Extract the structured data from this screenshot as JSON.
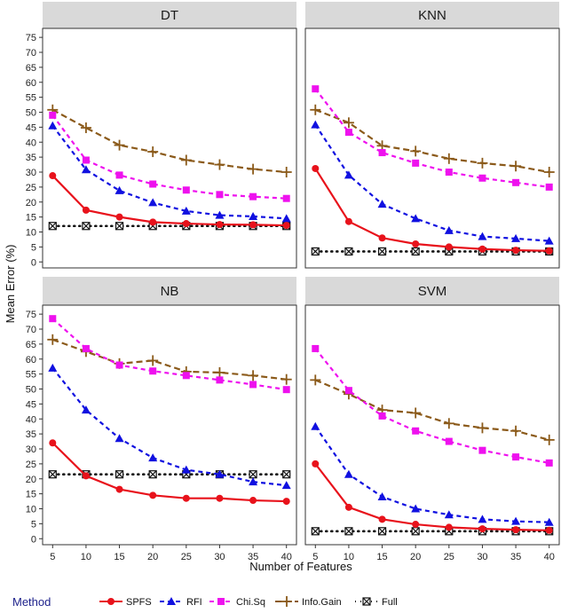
{
  "chart_data": {
    "type": "line",
    "xlabel": "Number of Features",
    "ylabel": "Mean Error (%)",
    "x": [
      5,
      10,
      15,
      20,
      25,
      30,
      35,
      40
    ],
    "xticks": [
      "5",
      "10",
      "15",
      "20",
      "25",
      "30",
      "35",
      "40"
    ],
    "yticks": [
      "0",
      "5",
      "10",
      "15",
      "20",
      "25",
      "30",
      "35",
      "40",
      "45",
      "50",
      "55",
      "60",
      "65",
      "70",
      "75"
    ],
    "ylim": [
      -2,
      78
    ],
    "legend": {
      "title": "Method",
      "position": "bottom"
    },
    "series_styles": [
      {
        "name": "SPFS",
        "color": "#e8121b",
        "dash": "",
        "marker": "circle"
      },
      {
        "name": "RFI",
        "color": "#1010e0",
        "dash": "5,4",
        "marker": "triangle"
      },
      {
        "name": "Chi.Sq",
        "color": "#ee11ee",
        "dash": "5,4",
        "marker": "square"
      },
      {
        "name": "Info.Gain",
        "color": "#8b5a1a",
        "dash": "7,4",
        "marker": "plus"
      },
      {
        "name": "Full",
        "color": "#111111",
        "dash": "1,5",
        "marker": "boxx"
      }
    ],
    "panels": [
      {
        "title": "DT",
        "series": [
          {
            "name": "SPFS",
            "values": [
              28.8,
              17.3,
              15.0,
              13.3,
              12.8,
              12.5,
              12.4,
              12.2
            ]
          },
          {
            "name": "RFI",
            "values": [
              45.5,
              30.8,
              23.8,
              19.8,
              17.0,
              15.6,
              15.2,
              14.5
            ]
          },
          {
            "name": "Chi.Sq",
            "values": [
              49.0,
              34.0,
              29.0,
              26.0,
              24.0,
              22.5,
              21.8,
              21.2
            ]
          },
          {
            "name": "Info.Gain",
            "values": [
              50.8,
              44.8,
              39.0,
              36.8,
              34.0,
              32.5,
              31.0,
              30.0
            ]
          },
          {
            "name": "Full",
            "values": [
              12.0,
              12.0,
              12.0,
              12.0,
              12.0,
              12.0,
              12.0,
              12.0
            ]
          }
        ]
      },
      {
        "title": "KNN",
        "series": [
          {
            "name": "SPFS",
            "values": [
              31.2,
              13.5,
              8.0,
              6.0,
              5.0,
              4.3,
              3.9,
              3.7
            ]
          },
          {
            "name": "RFI",
            "values": [
              45.8,
              29.0,
              19.3,
              14.5,
              10.5,
              8.5,
              7.8,
              7.0
            ]
          },
          {
            "name": "Chi.Sq",
            "values": [
              57.8,
              43.3,
              36.5,
              33.0,
              30.0,
              28.0,
              26.5,
              25.0
            ]
          },
          {
            "name": "Info.Gain",
            "values": [
              50.8,
              46.5,
              38.8,
              37.0,
              34.5,
              33.0,
              32.0,
              30.0
            ]
          },
          {
            "name": "Full",
            "values": [
              3.5,
              3.5,
              3.5,
              3.5,
              3.5,
              3.5,
              3.5,
              3.5
            ]
          }
        ]
      },
      {
        "title": "NB",
        "series": [
          {
            "name": "SPFS",
            "values": [
              32.0,
              21.0,
              16.5,
              14.5,
              13.5,
              13.5,
              12.8,
              12.5
            ]
          },
          {
            "name": "RFI",
            "values": [
              57.0,
              43.0,
              33.5,
              27.0,
              23.0,
              21.5,
              19.0,
              17.8
            ]
          },
          {
            "name": "Chi.Sq",
            "values": [
              73.5,
              63.5,
              58.0,
              56.0,
              54.5,
              53.0,
              51.5,
              49.8
            ]
          },
          {
            "name": "Info.Gain",
            "values": [
              66.5,
              62.5,
              58.5,
              59.5,
              55.8,
              55.5,
              54.5,
              53.2
            ]
          },
          {
            "name": "Full",
            "values": [
              21.5,
              21.5,
              21.5,
              21.5,
              21.5,
              21.5,
              21.5,
              21.5
            ]
          }
        ]
      },
      {
        "title": "SVM",
        "series": [
          {
            "name": "SPFS",
            "values": [
              25.0,
              10.5,
              6.5,
              4.8,
              3.8,
              3.3,
              3.0,
              2.8
            ]
          },
          {
            "name": "RFI",
            "values": [
              37.5,
              21.5,
              14.0,
              10.0,
              8.0,
              6.5,
              5.8,
              5.5
            ]
          },
          {
            "name": "Chi.Sq",
            "values": [
              63.5,
              49.5,
              41.0,
              36.0,
              32.5,
              29.5,
              27.3,
              25.3
            ]
          },
          {
            "name": "Info.Gain",
            "values": [
              53.0,
              48.3,
              43.0,
              42.0,
              38.5,
              37.0,
              36.0,
              33.0
            ]
          },
          {
            "name": "Full",
            "values": [
              2.5,
              2.5,
              2.5,
              2.5,
              2.5,
              2.5,
              2.5,
              2.5
            ]
          }
        ]
      }
    ]
  }
}
